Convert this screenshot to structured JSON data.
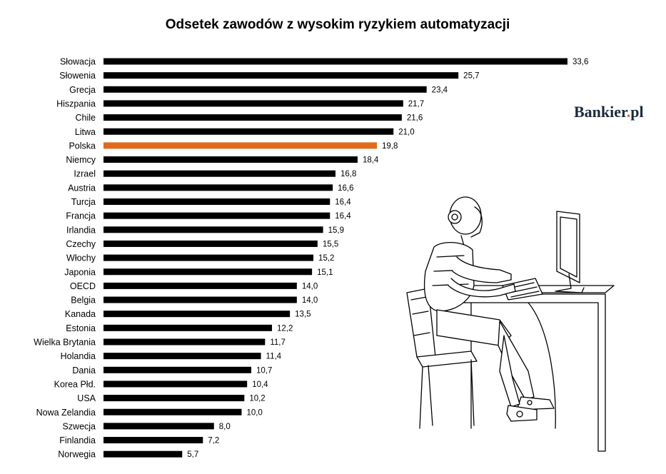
{
  "chart_data": {
    "type": "bar",
    "orientation": "horizontal",
    "title": "Odsetek zawodów  z wysokim  ryzykiem  automatyzacji",
    "categories": [
      "Słowacja",
      "Słowenia",
      "Grecja",
      "Hiszpania",
      "Chile",
      "Litwa",
      "Polska",
      "Niemcy",
      "Izrael",
      "Austria",
      "Turcja",
      "Francja",
      "Irlandia",
      "Czechy",
      "Włochy",
      "Japonia",
      "OECD",
      "Belgia",
      "Kanada",
      "Estonia",
      "Wielka Brytania",
      "Holandia",
      "Dania",
      "Korea Płd.",
      "USA",
      "Nowa Zelandia",
      "Szwecja",
      "Finlandia",
      "Norwegia"
    ],
    "values": [
      33.6,
      25.7,
      23.4,
      21.7,
      21.6,
      21.0,
      19.8,
      18.4,
      16.8,
      16.6,
      16.4,
      16.4,
      15.9,
      15.5,
      15.2,
      15.1,
      14.0,
      14.0,
      13.5,
      12.2,
      11.7,
      11.4,
      10.7,
      10.4,
      10.2,
      10.0,
      8.0,
      7.2,
      5.7
    ],
    "value_labels": [
      "33,6",
      "25,7",
      "23,4",
      "21,7",
      "21,6",
      "21,0",
      "19,8",
      "18,4",
      "16,8",
      "16,6",
      "16,4",
      "16,4",
      "15,9",
      "15,5",
      "15,2",
      "15,1",
      "14,0",
      "14,0",
      "13,5",
      "12,2",
      "11,7",
      "11,4",
      "10,7",
      "10,4",
      "10,2",
      "10,0",
      "8,0",
      "7,2",
      "5,7"
    ],
    "highlight_category": "Polska",
    "colors": {
      "bar": "#000000",
      "highlight": "#e06b1e",
      "text": "#000000"
    },
    "grid": false,
    "legend": "none"
  },
  "logo": {
    "text": "Bankier.pl",
    "color": "#1c2b3a",
    "dot_color": "#e06b1e"
  },
  "illustration": {
    "icon": "robot-at-computer-icon"
  }
}
